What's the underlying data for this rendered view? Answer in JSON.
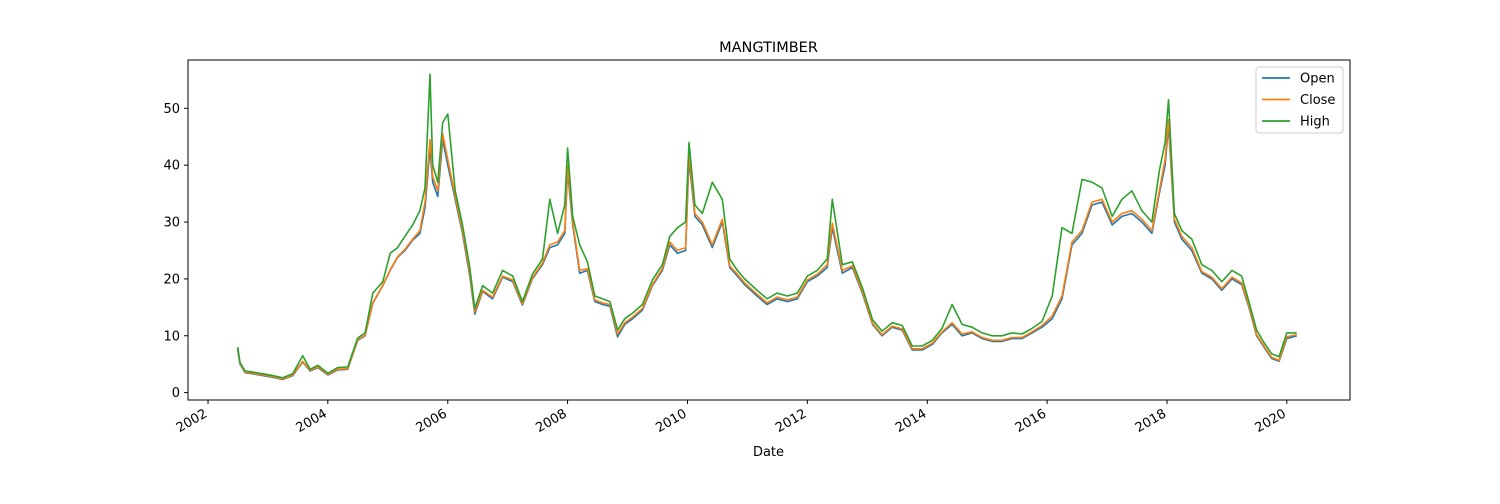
{
  "chart_data": {
    "type": "line",
    "title": "MANGTIMBER",
    "xlabel": "Date",
    "ylabel": "",
    "x_ticks": [
      "2002",
      "2004",
      "2006",
      "2008",
      "2010",
      "2012",
      "2014",
      "2016",
      "2018",
      "2020"
    ],
    "y_ticks": [
      "0",
      "10",
      "20",
      "30",
      "40",
      "50"
    ],
    "xlim": [
      "2001-09-01",
      "2021-01-20"
    ],
    "ylim": [
      -1.3,
      58.5
    ],
    "grid": false,
    "legend_position": "top-right",
    "x": [
      "2002-07-01",
      "2002-07-15",
      "2002-08-15",
      "2002-10-01",
      "2002-12-01",
      "2003-02-01",
      "2003-04-01",
      "2003-06-01",
      "2003-08-01",
      "2003-09-15",
      "2003-11-01",
      "2004-01-01",
      "2004-03-01",
      "2004-05-01",
      "2004-07-01",
      "2004-08-15",
      "2004-10-01",
      "2004-12-01",
      "2005-01-15",
      "2005-03-01",
      "2005-04-15",
      "2005-06-01",
      "2005-07-15",
      "2005-08-15",
      "2005-09-15",
      "2005-10-01",
      "2005-11-01",
      "2005-12-01",
      "2006-01-01",
      "2006-02-15",
      "2006-04-01",
      "2006-05-15",
      "2006-06-15",
      "2006-08-01",
      "2006-10-01",
      "2006-12-01",
      "2007-02-01",
      "2007-04-01",
      "2007-06-01",
      "2007-08-01",
      "2007-09-15",
      "2007-11-01",
      "2007-12-15",
      "2008-01-01",
      "2008-02-01",
      "2008-03-15",
      "2008-05-01",
      "2008-06-15",
      "2008-08-01",
      "2008-09-15",
      "2008-11-01",
      "2008-12-15",
      "2009-02-01",
      "2009-04-01",
      "2009-06-01",
      "2009-08-01",
      "2009-09-15",
      "2009-11-01",
      "2009-12-20",
      "2010-01-10",
      "2010-02-15",
      "2010-04-01",
      "2010-06-01",
      "2010-08-01",
      "2010-09-15",
      "2010-11-01",
      "2010-12-15",
      "2011-03-01",
      "2011-05-01",
      "2011-07-01",
      "2011-09-01",
      "2011-11-01",
      "2012-01-01",
      "2012-03-01",
      "2012-05-01",
      "2012-06-01",
      "2012-08-01",
      "2012-10-01",
      "2012-12-01",
      "2013-02-01",
      "2013-04-01",
      "2013-06-01",
      "2013-08-01",
      "2013-10-01",
      "2013-12-01",
      "2014-02-01",
      "2014-04-01",
      "2014-06-01",
      "2014-08-01",
      "2014-10-01",
      "2014-12-01",
      "2015-02-01",
      "2015-04-01",
      "2015-06-01",
      "2015-08-01",
      "2015-10-01",
      "2015-12-01",
      "2016-02-01",
      "2016-04-01",
      "2016-06-01",
      "2016-08-01",
      "2016-10-01",
      "2016-12-01",
      "2017-02-01",
      "2017-04-01",
      "2017-06-01",
      "2017-08-01",
      "2017-10-01",
      "2017-11-15",
      "2017-12-20",
      "2018-01-10",
      "2018-02-15",
      "2018-04-01",
      "2018-06-01",
      "2018-08-01",
      "2018-10-01",
      "2018-12-01",
      "2019-02-01",
      "2019-04-01",
      "2019-05-15",
      "2019-07-01",
      "2019-08-15",
      "2019-10-01",
      "2019-11-15",
      "2020-01-01",
      "2020-03-01"
    ],
    "series": [
      {
        "name": "Open",
        "color": "#1f77b4",
        "values": [
          7.5,
          5.0,
          3.5,
          3.3,
          3.0,
          2.7,
          2.3,
          3.0,
          5.4,
          3.8,
          4.4,
          3.1,
          4.0,
          4.1,
          9.2,
          10.0,
          15.7,
          18.8,
          21.5,
          23.8,
          25.0,
          26.8,
          28.0,
          32.5,
          43.0,
          37.0,
          34.5,
          44.5,
          40.0,
          34.0,
          28.0,
          20.5,
          13.8,
          17.8,
          16.5,
          20.3,
          19.5,
          15.4,
          20.0,
          22.5,
          25.5,
          26.0,
          28.0,
          39.0,
          29.5,
          21.0,
          21.5,
          16.0,
          15.5,
          15.2,
          9.8,
          12.0,
          13.0,
          14.5,
          18.8,
          21.5,
          26.0,
          24.5,
          25.0,
          41.0,
          31.0,
          29.5,
          25.5,
          30.0,
          22.0,
          20.5,
          19.0,
          17.0,
          15.5,
          16.5,
          16.0,
          16.5,
          19.5,
          20.5,
          22.0,
          29.0,
          21.0,
          22.0,
          17.5,
          12.0,
          10.0,
          11.5,
          11.0,
          7.5,
          7.5,
          8.5,
          10.5,
          12.0,
          10.0,
          10.5,
          9.5,
          9.0,
          9.0,
          9.5,
          9.5,
          10.5,
          11.5,
          13.0,
          16.5,
          26.0,
          28.0,
          33.0,
          33.5,
          29.5,
          31.0,
          31.5,
          30.0,
          28.0,
          35.0,
          40.0,
          47.0,
          30.0,
          27.0,
          25.0,
          21.0,
          20.0,
          18.0,
          20.0,
          19.0,
          15.0,
          10.0,
          8.0,
          6.0,
          5.5,
          9.5,
          10.0
        ]
      },
      {
        "name": "Close",
        "color": "#ff7f0e",
        "values": [
          7.7,
          5.1,
          3.6,
          3.4,
          3.1,
          2.8,
          2.4,
          3.1,
          5.5,
          3.9,
          4.5,
          3.2,
          4.1,
          4.2,
          9.3,
          10.1,
          15.8,
          18.9,
          21.6,
          23.9,
          25.2,
          27.0,
          28.5,
          33.5,
          44.5,
          38.0,
          35.5,
          45.5,
          41.0,
          34.5,
          28.5,
          21.0,
          14.2,
          18.0,
          16.8,
          20.5,
          19.8,
          15.6,
          20.2,
          22.8,
          26.0,
          26.5,
          28.5,
          40.0,
          30.0,
          21.5,
          21.8,
          16.3,
          15.8,
          15.5,
          10.3,
          12.3,
          13.3,
          14.8,
          19.0,
          21.8,
          26.5,
          25.0,
          25.5,
          42.0,
          31.5,
          30.0,
          26.0,
          30.5,
          22.3,
          20.8,
          19.3,
          17.3,
          15.8,
          16.8,
          16.3,
          16.8,
          19.8,
          20.8,
          22.5,
          29.8,
          21.5,
          22.3,
          17.8,
          12.2,
          10.2,
          11.7,
          11.2,
          7.7,
          7.7,
          8.7,
          10.7,
          12.3,
          10.3,
          10.7,
          9.7,
          9.2,
          9.2,
          9.7,
          9.7,
          10.7,
          11.8,
          13.5,
          17.0,
          26.5,
          28.5,
          33.5,
          34.0,
          30.0,
          31.5,
          32.0,
          30.5,
          28.5,
          35.5,
          41.0,
          48.0,
          30.5,
          27.5,
          25.5,
          21.3,
          20.3,
          18.3,
          20.3,
          19.3,
          15.3,
          10.2,
          8.2,
          6.2,
          5.7,
          9.8,
          10.2
        ]
      },
      {
        "name": "High",
        "color": "#2ca02c",
        "values": [
          8.0,
          5.3,
          3.8,
          3.6,
          3.3,
          3.0,
          2.6,
          3.3,
          6.5,
          4.1,
          4.8,
          3.4,
          4.4,
          4.5,
          9.6,
          10.5,
          17.5,
          19.5,
          24.5,
          25.5,
          27.5,
          29.5,
          32.0,
          36.0,
          56.0,
          40.0,
          37.0,
          47.5,
          49.0,
          35.5,
          29.5,
          22.0,
          14.8,
          18.8,
          17.5,
          21.5,
          20.5,
          16.0,
          20.8,
          23.5,
          34.0,
          28.0,
          33.0,
          43.0,
          31.0,
          26.0,
          23.0,
          17.0,
          16.5,
          16.0,
          11.0,
          13.0,
          14.0,
          15.5,
          19.8,
          22.5,
          27.5,
          29.0,
          30.0,
          44.0,
          33.0,
          31.5,
          37.0,
          34.0,
          23.5,
          21.5,
          20.0,
          18.0,
          16.5,
          17.5,
          17.0,
          17.5,
          20.5,
          21.5,
          23.5,
          34.0,
          22.5,
          23.0,
          18.5,
          12.8,
          10.8,
          12.3,
          11.8,
          8.2,
          8.2,
          9.2,
          11.3,
          15.5,
          12.0,
          11.5,
          10.5,
          10.0,
          10.0,
          10.5,
          10.3,
          11.3,
          12.5,
          17.0,
          29.0,
          28.0,
          37.5,
          37.0,
          36.0,
          31.0,
          34.0,
          35.5,
          32.0,
          30.0,
          39.0,
          44.0,
          51.5,
          31.5,
          28.5,
          27.0,
          22.5,
          21.5,
          19.5,
          21.5,
          20.5,
          16.0,
          11.0,
          8.8,
          6.8,
          6.3,
          10.5,
          10.5
        ]
      }
    ]
  }
}
